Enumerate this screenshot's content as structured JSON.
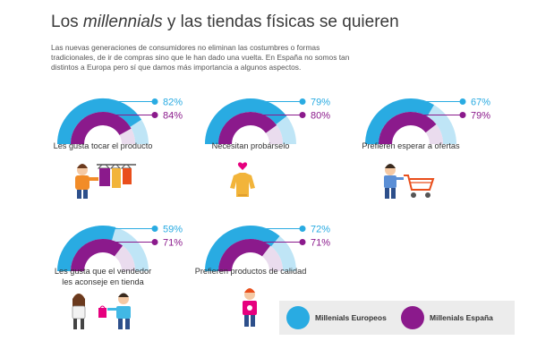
{
  "header": {
    "title_pre": "Los ",
    "title_em": "millennials",
    "title_post": " y las tiendas físicas se quieren",
    "intro": "Las nuevas generaciones de consumidores no eliminan las costumbres o formas tradicionales, de ir de compras sino que le han dado una vuelta.  En España no somos tan distintos a Europa pero sí que damos más importancia a algunos aspectos."
  },
  "colors": {
    "europe": "#29abe2",
    "europe_track": "#bfe5f6",
    "spain": "#8b1a8c",
    "spain_track": "#eadcee"
  },
  "legend": {
    "europe_label": "Millenials Europeos",
    "spain_label": "Millenials España"
  },
  "chart_data": {
    "type": "radial-bar",
    "series": [
      {
        "name": "Millenials Europeos",
        "values": [
          82,
          79,
          67,
          59,
          72
        ]
      },
      {
        "name": "Millenials España",
        "values": [
          84,
          80,
          79,
          71,
          71
        ]
      }
    ],
    "categories": [
      "Les gusta tocar el producto",
      "Necesitan probárselo",
      "Prefieren esperar a ofertas",
      "Les gusta que el vendedor les aconseje en tienda",
      "Prefieren productos de calidad"
    ],
    "value_labels": [
      [
        "82%",
        "84%"
      ],
      [
        "79%",
        "80%"
      ],
      [
        "67%",
        "79%"
      ],
      [
        "59%",
        "71%"
      ],
      [
        "72%",
        "71%"
      ]
    ],
    "category_label_lines": [
      [
        "Les gusta tocar el producto"
      ],
      [
        "Necesitan probárselo"
      ],
      [
        "Prefieren esperar a ofertas"
      ],
      [
        "Les gusta que el vendedor",
        "les aconseje en tienda"
      ],
      [
        "Prefieren productos de calidad"
      ]
    ],
    "ylim": [
      0,
      100
    ]
  },
  "illustrations": [
    "shopper-browsing-clothes-icon",
    "sweater-heart-icon",
    "shopping-cart-icon",
    "shop-assistant-customer-icon",
    "quality-shopper-icon"
  ]
}
